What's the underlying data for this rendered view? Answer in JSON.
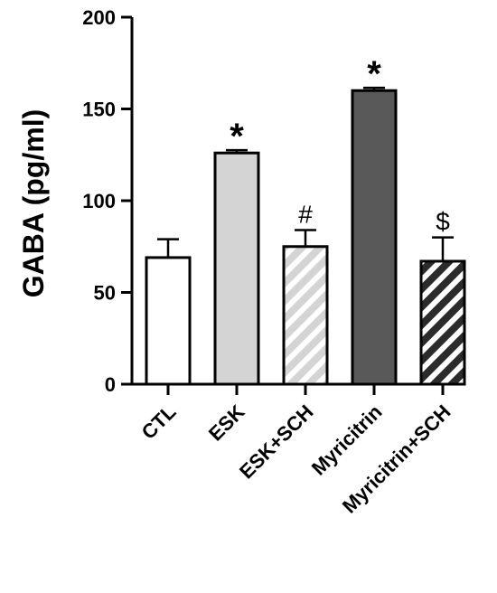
{
  "chart_data": {
    "type": "bar",
    "title": "",
    "ylabel": "GABA (pg/ml)",
    "xlabel": "",
    "ylim": [
      0,
      200
    ],
    "yticks": [
      0,
      50,
      100,
      150,
      200
    ],
    "grid": false,
    "categories": [
      "CTL",
      "ESK",
      "ESK+SCH",
      "Myricitrin",
      "Myricitrin+SCH"
    ],
    "values": [
      69,
      126,
      75,
      160,
      67
    ],
    "errors": [
      10,
      1.5,
      9,
      1.5,
      13
    ],
    "annotations": [
      "",
      "*",
      "#",
      "*",
      "$"
    ],
    "fills": [
      "#ffffff",
      "#d4d4d4",
      "#d4d4d4",
      "#595959",
      "#2b2b2b"
    ],
    "hatched": [
      false,
      false,
      true,
      false,
      true
    ],
    "hatch_colors": [
      "",
      "",
      "#ffffff",
      "",
      "#ffffff"
    ]
  }
}
